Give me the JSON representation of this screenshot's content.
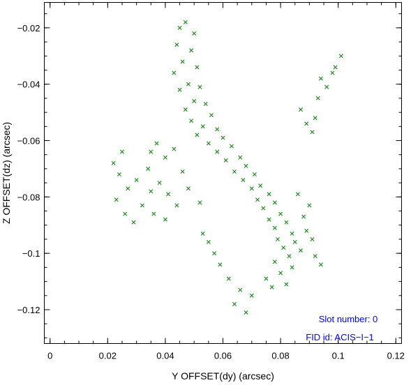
{
  "chart_data": {
    "type": "scatter",
    "title": "",
    "xlabel": "Y OFFSET(dy) (arcsec)",
    "ylabel": "Z OFFSET(dz) (arcsec)",
    "xlim": [
      -0.002,
      0.122
    ],
    "ylim": [
      -0.132,
      -0.011
    ],
    "x_ticks": [
      0,
      0.02,
      0.04,
      0.06,
      0.08,
      0.1,
      0.12
    ],
    "x_tick_labels": [
      "0",
      "0.02",
      "0.04",
      "0.06",
      "0.08",
      "0.1",
      "0.12"
    ],
    "y_ticks": [
      -0.02,
      -0.04,
      -0.06,
      -0.08,
      -0.1,
      -0.12
    ],
    "y_tick_labels": [
      "−0.02",
      "−0.04",
      "−0.06",
      "−0.08",
      "−0.1",
      "−0.12"
    ],
    "grid": false,
    "marker": "x",
    "color": "#228b22",
    "annotation_color": "#0000ff",
    "annotations": [
      "Slot number: 0",
      "FID id: ACIS−I−1"
    ],
    "series": [
      {
        "points": [
          [
            0.045,
            -0.02
          ],
          [
            0.047,
            -0.018
          ],
          [
            0.05,
            -0.022
          ],
          [
            0.044,
            -0.026
          ],
          [
            0.049,
            -0.028
          ],
          [
            0.046,
            -0.032
          ],
          [
            0.051,
            -0.034
          ],
          [
            0.043,
            -0.036
          ],
          [
            0.048,
            -0.04
          ],
          [
            0.052,
            -0.041
          ],
          [
            0.045,
            -0.042
          ],
          [
            0.05,
            -0.046
          ],
          [
            0.054,
            -0.047
          ],
          [
            0.047,
            -0.049
          ],
          [
            0.056,
            -0.051
          ],
          [
            0.049,
            -0.053
          ],
          [
            0.053,
            -0.055
          ],
          [
            0.058,
            -0.056
          ],
          [
            0.051,
            -0.058
          ],
          [
            0.06,
            -0.059
          ],
          [
            0.055,
            -0.061
          ],
          [
            0.063,
            -0.062
          ],
          [
            0.058,
            -0.064
          ],
          [
            0.066,
            -0.066
          ],
          [
            0.061,
            -0.067
          ],
          [
            0.068,
            -0.069
          ],
          [
            0.064,
            -0.071
          ],
          [
            0.071,
            -0.072
          ],
          [
            0.067,
            -0.074
          ],
          [
            0.073,
            -0.076
          ],
          [
            0.07,
            -0.077
          ],
          [
            0.076,
            -0.079
          ],
          [
            0.072,
            -0.081
          ],
          [
            0.078,
            -0.082
          ],
          [
            0.074,
            -0.084
          ],
          [
            0.08,
            -0.086
          ],
          [
            0.076,
            -0.088
          ],
          [
            0.082,
            -0.089
          ],
          [
            0.078,
            -0.091
          ],
          [
            0.084,
            -0.093
          ],
          [
            0.079,
            -0.095
          ],
          [
            0.085,
            -0.096
          ],
          [
            0.081,
            -0.098
          ],
          [
            0.083,
            -0.101
          ],
          [
            0.078,
            -0.103
          ],
          [
            0.084,
            -0.105
          ],
          [
            0.08,
            -0.107
          ],
          [
            0.075,
            -0.109
          ],
          [
            0.082,
            -0.111
          ],
          [
            0.077,
            -0.112
          ],
          [
            0.088,
            -0.087
          ],
          [
            0.09,
            -0.083
          ],
          [
            0.086,
            -0.079
          ],
          [
            0.089,
            -0.092
          ],
          [
            0.087,
            -0.099
          ],
          [
            0.091,
            -0.095
          ],
          [
            0.092,
            -0.101
          ],
          [
            0.094,
            -0.104
          ],
          [
            0.062,
            -0.109
          ],
          [
            0.066,
            -0.113
          ],
          [
            0.07,
            -0.115
          ],
          [
            0.064,
            -0.118
          ],
          [
            0.068,
            -0.121
          ],
          [
            0.059,
            -0.104
          ],
          [
            0.057,
            -0.1
          ],
          [
            0.055,
            -0.096
          ],
          [
            0.053,
            -0.093
          ],
          [
            0.022,
            -0.068
          ],
          [
            0.025,
            -0.064
          ],
          [
            0.024,
            -0.072
          ],
          [
            0.027,
            -0.077
          ],
          [
            0.023,
            -0.081
          ],
          [
            0.026,
            -0.086
          ],
          [
            0.029,
            -0.089
          ],
          [
            0.032,
            -0.083
          ],
          [
            0.035,
            -0.078
          ],
          [
            0.03,
            -0.074
          ],
          [
            0.034,
            -0.07
          ],
          [
            0.038,
            -0.075
          ],
          [
            0.041,
            -0.079
          ],
          [
            0.036,
            -0.086
          ],
          [
            0.04,
            -0.088
          ],
          [
            0.044,
            -0.083
          ],
          [
            0.04,
            -0.066
          ],
          [
            0.043,
            -0.063
          ],
          [
            0.037,
            -0.061
          ],
          [
            0.046,
            -0.071
          ],
          [
            0.048,
            -0.077
          ],
          [
            0.035,
            -0.064
          ],
          [
            0.052,
            -0.082
          ],
          [
            0.087,
            -0.049
          ],
          [
            0.089,
            -0.054
          ],
          [
            0.093,
            -0.045
          ],
          [
            0.096,
            -0.041
          ],
          [
            0.098,
            -0.036
          ],
          [
            0.101,
            -0.03
          ],
          [
            0.094,
            -0.038
          ],
          [
            0.099,
            -0.034
          ],
          [
            0.092,
            -0.052
          ],
          [
            0.091,
            -0.057
          ]
        ]
      }
    ]
  }
}
